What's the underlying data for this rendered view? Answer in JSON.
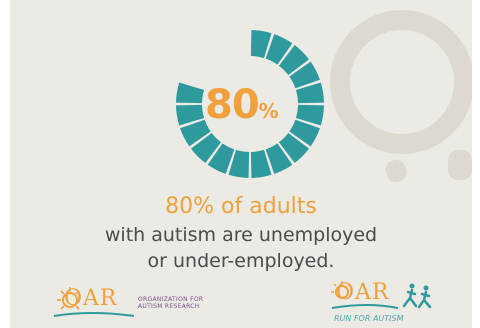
{
  "stat": {
    "value": "80",
    "sign": "%",
    "fraction": 0.8
  },
  "headline": "80% of adults",
  "body_lines": [
    "with autism are unemployed",
    "or under-employed."
  ],
  "logos": {
    "left": {
      "mark": "OAR",
      "subtitle_line1": "ORGANIZATION FOR",
      "subtitle_line2": "AUTISM RESEARCH"
    },
    "right": {
      "mark": "OAR",
      "tagline": "RUN FOR AUTISM"
    }
  },
  "colors": {
    "teal": "#2f9a9d",
    "orange": "#f0a13e",
    "text": "#4b4b4b",
    "background": "#eceae4",
    "purple": "#7a4f8a"
  }
}
